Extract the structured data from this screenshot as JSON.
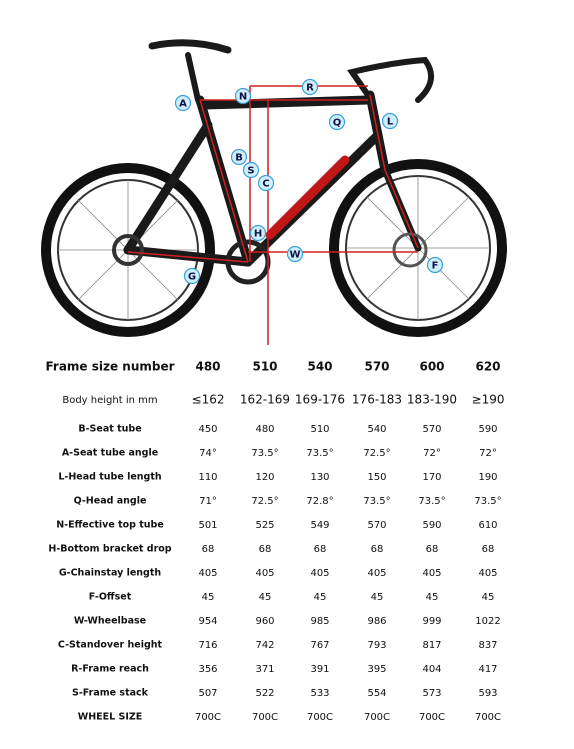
{
  "diagram": {
    "labels": [
      "A",
      "N",
      "R",
      "Q",
      "L",
      "B",
      "S",
      "C",
      "H",
      "W",
      "G",
      "F"
    ]
  },
  "table": {
    "header": [
      "Frame size number",
      "480",
      "510",
      "540",
      "570",
      "600",
      "620"
    ],
    "rows": [
      [
        "Body height in mm",
        "≤162",
        "162-169",
        "169-176",
        "176-183",
        "183-190",
        "≥190"
      ],
      [
        "B-Seat tube",
        "450",
        "480",
        "510",
        "540",
        "570",
        "590"
      ],
      [
        "A-Seat tube angle",
        "74°",
        "73.5°",
        "73.5°",
        "72.5°",
        "72°",
        "72°"
      ],
      [
        "L-Head tube length",
        "110",
        "120",
        "130",
        "150",
        "170",
        "190"
      ],
      [
        "Q-Head angle",
        "71°",
        "72.5°",
        "72.8°",
        "73.5°",
        "73.5°",
        "73.5°"
      ],
      [
        "N-Effective top tube",
        "501",
        "525",
        "549",
        "570",
        "590",
        "610"
      ],
      [
        "H-Bottom bracket drop",
        "68",
        "68",
        "68",
        "68",
        "68",
        "68"
      ],
      [
        "G-Chainstay length",
        "405",
        "405",
        "405",
        "405",
        "405",
        "405"
      ],
      [
        "F-Offset",
        "45",
        "45",
        "45",
        "45",
        "45",
        "45"
      ],
      [
        "W-Wheelbase",
        "954",
        "960",
        "985",
        "986",
        "999",
        "1022"
      ],
      [
        "C-Standover height",
        "716",
        "742",
        "767",
        "793",
        "817",
        "837"
      ],
      [
        "R-Frame reach",
        "356",
        "371",
        "391",
        "395",
        "404",
        "417"
      ],
      [
        "S-Frame stack",
        "507",
        "522",
        "533",
        "554",
        "573",
        "593"
      ],
      [
        "WHEEL SIZE",
        "700C",
        "700C",
        "700C",
        "700C",
        "700C",
        "700C"
      ]
    ]
  }
}
